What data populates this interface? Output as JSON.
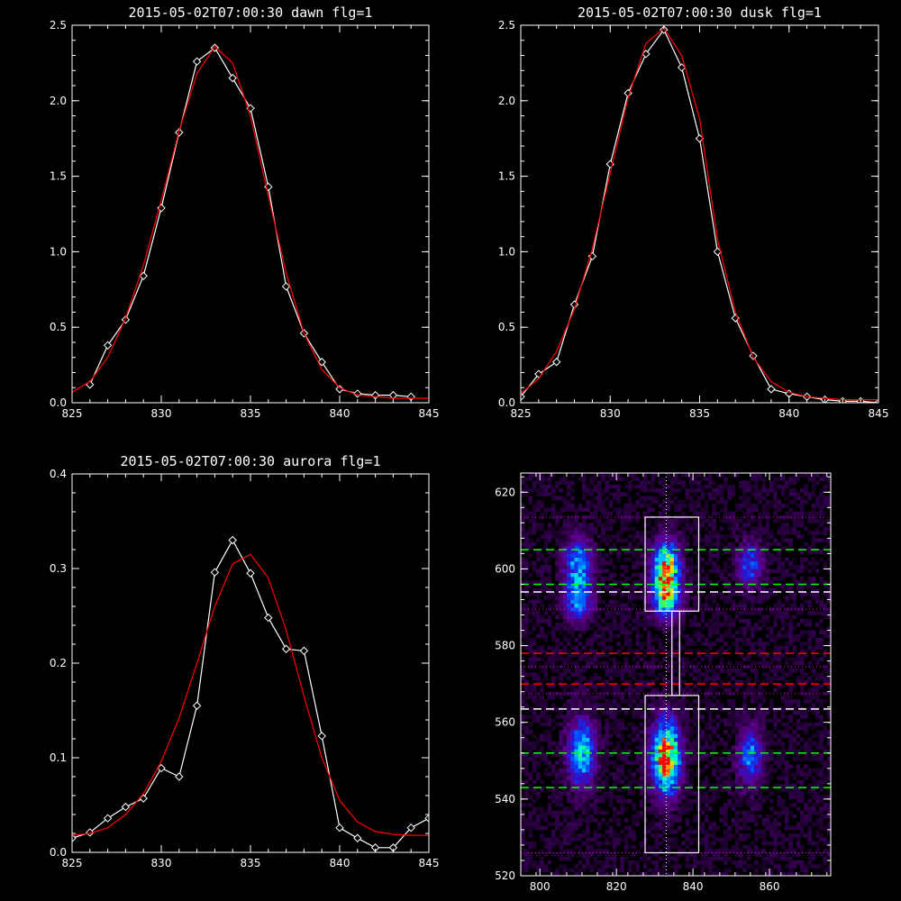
{
  "chart_data": [
    {
      "type": "line",
      "title": "2015-05-02T07:00:30 dawn flg=1",
      "xlim": [
        825,
        845
      ],
      "ylim": [
        0,
        2.5
      ],
      "xticks": [
        825,
        830,
        835,
        840,
        845
      ],
      "xtick_labels": [
        "825",
        "830",
        "835",
        "840",
        "845"
      ],
      "yticks": [
        0,
        0.5,
        1.0,
        1.5,
        2.0,
        2.5
      ],
      "ytick_labels": [
        "0.0",
        "0.5",
        "1.0",
        "1.5",
        "2.0",
        "2.5"
      ],
      "series": [
        {
          "color": "#ffffff",
          "marker": "diamond",
          "x": [
            826,
            827,
            828,
            829,
            830,
            831,
            832,
            833,
            834,
            835,
            836,
            837,
            838,
            839,
            840,
            841,
            842,
            843,
            844
          ],
          "y": [
            0.12,
            0.38,
            0.55,
            0.84,
            1.29,
            1.79,
            2.26,
            2.35,
            2.15,
            1.95,
            1.43,
            0.77,
            0.46,
            0.27,
            0.09,
            0.06,
            0.05,
            0.05,
            0.04
          ]
        },
        {
          "color": "#ff0000",
          "x": [
            825,
            826,
            827,
            828,
            829,
            830,
            831,
            832,
            833,
            834,
            835,
            836,
            837,
            838,
            839,
            840,
            841,
            842,
            843,
            844,
            845
          ],
          "y": [
            0.07,
            0.14,
            0.3,
            0.56,
            0.91,
            1.34,
            1.8,
            2.18,
            2.36,
            2.25,
            1.9,
            1.37,
            0.86,
            0.46,
            0.22,
            0.1,
            0.05,
            0.04,
            0.03,
            0.03,
            0.03
          ]
        }
      ]
    },
    {
      "type": "line",
      "title": "2015-05-02T07:00:30 dusk flg=1",
      "xlim": [
        825,
        845
      ],
      "ylim": [
        0,
        2.5
      ],
      "xticks": [
        825,
        830,
        835,
        840,
        845
      ],
      "xtick_labels": [
        "825",
        "830",
        "835",
        "840",
        "845"
      ],
      "yticks": [
        0,
        0.5,
        1.0,
        1.5,
        2.0,
        2.5
      ],
      "ytick_labels": [
        "0.0",
        "0.5",
        "1.0",
        "1.5",
        "2.0",
        "2.5"
      ],
      "series": [
        {
          "color": "#ffffff",
          "marker": "diamond",
          "x": [
            825,
            826,
            827,
            828,
            829,
            830,
            831,
            832,
            833,
            834,
            835,
            836,
            837,
            838,
            839,
            840,
            841,
            842,
            843,
            844,
            845
          ],
          "y": [
            0.04,
            0.19,
            0.27,
            0.65,
            0.97,
            1.58,
            2.05,
            2.31,
            2.47,
            2.22,
            1.75,
            1.0,
            0.56,
            0.31,
            0.09,
            0.06,
            0.04,
            0.02,
            0.01,
            0.01,
            0.0
          ]
        },
        {
          "color": "#ff0000",
          "x": [
            825,
            826,
            827,
            828,
            829,
            830,
            831,
            832,
            833,
            834,
            835,
            836,
            837,
            838,
            839,
            840,
            841,
            842,
            843,
            844,
            845
          ],
          "y": [
            0.06,
            0.16,
            0.34,
            0.62,
            1.02,
            1.52,
            2.02,
            2.38,
            2.48,
            2.3,
            1.88,
            1.08,
            0.6,
            0.3,
            0.14,
            0.07,
            0.04,
            0.03,
            0.02,
            0.02,
            0.02
          ]
        }
      ]
    },
    {
      "type": "line",
      "title": "2015-05-02T07:00:30 aurora flg=1",
      "xlim": [
        825,
        845
      ],
      "ylim": [
        0,
        0.4
      ],
      "xticks": [
        825,
        830,
        835,
        840,
        845
      ],
      "xtick_labels": [
        "825",
        "830",
        "835",
        "840",
        "845"
      ],
      "yticks": [
        0,
        0.1,
        0.2,
        0.3,
        0.4
      ],
      "ytick_labels": [
        "0.0",
        "0.1",
        "0.2",
        "0.3",
        "0.4"
      ],
      "series": [
        {
          "color": "#ffffff",
          "marker": "diamond",
          "x": [
            825,
            826,
            827,
            828,
            829,
            830,
            831,
            832,
            833,
            834,
            835,
            836,
            837,
            838,
            839,
            840,
            841,
            842,
            843,
            844,
            845
          ],
          "y": [
            0.015,
            0.021,
            0.036,
            0.048,
            0.057,
            0.089,
            0.08,
            0.155,
            0.296,
            0.33,
            0.295,
            0.248,
            0.215,
            0.213,
            0.123,
            0.026,
            0.015,
            0.005,
            0.005,
            0.026,
            0.036
          ]
        },
        {
          "color": "#ff0000",
          "x": [
            825,
            826,
            827,
            828,
            829,
            830,
            831,
            832,
            833,
            834,
            835,
            836,
            837,
            838,
            839,
            840,
            841,
            842,
            843,
            844,
            845
          ],
          "y": [
            0.018,
            0.02,
            0.026,
            0.04,
            0.062,
            0.096,
            0.142,
            0.2,
            0.26,
            0.305,
            0.315,
            0.29,
            0.235,
            0.165,
            0.1,
            0.055,
            0.032,
            0.022,
            0.019,
            0.018,
            0.018
          ]
        }
      ]
    },
    {
      "type": "heatmap",
      "title": "",
      "xlim": [
        795,
        876
      ],
      "ylim": [
        520,
        625
      ],
      "xticks": [
        800,
        820,
        840,
        860
      ],
      "xtick_labels": [
        "800",
        "820",
        "840",
        "860"
      ],
      "yticks": [
        520,
        540,
        560,
        580,
        600,
        620
      ],
      "ytick_labels": [
        "520",
        "540",
        "560",
        "580",
        "600",
        "620"
      ],
      "blobs": [
        {
          "x": 810,
          "y": 600,
          "sx": 2.5,
          "sy": 5.5,
          "amp": 0.55
        },
        {
          "x": 810,
          "y": 591,
          "sx": 2.5,
          "sy": 3.5,
          "amp": 0.35
        },
        {
          "x": 811,
          "y": 552,
          "sx": 2.5,
          "sy": 6,
          "amp": 0.6
        },
        {
          "x": 833,
          "y": 600,
          "sx": 2.5,
          "sy": 5,
          "amp": 0.85
        },
        {
          "x": 833,
          "y": 592,
          "sx": 2.5,
          "sy": 3.5,
          "amp": 0.6
        },
        {
          "x": 833,
          "y": 551,
          "sx": 2.5,
          "sy": 6.5,
          "amp": 1.0
        },
        {
          "x": 855,
          "y": 601,
          "sx": 2.2,
          "sy": 4,
          "amp": 0.4
        },
        {
          "x": 855,
          "y": 551,
          "sx": 2.2,
          "sy": 5.5,
          "amp": 0.45
        }
      ],
      "boxes": [
        {
          "x0": 827.5,
          "x1": 841.5,
          "y0": 589,
          "y1": 613.5
        },
        {
          "x0": 827.5,
          "x1": 841.5,
          "y0": 526,
          "y1": 567
        },
        {
          "x0": 834.5,
          "x1": 836.5,
          "y0": 567,
          "y1": 589
        }
      ],
      "vline_x": 833,
      "hlines": [
        {
          "y": 613.5,
          "color": "#ff00ff",
          "style": "dotted"
        },
        {
          "y": 589.5,
          "color": "#ff00ff",
          "style": "dotted"
        },
        {
          "y": 574.5,
          "color": "#ff00ff",
          "style": "dotted"
        },
        {
          "y": 567.5,
          "color": "#ff00ff",
          "style": "dotted"
        },
        {
          "y": 526,
          "color": "#ff00ff",
          "style": "dotted"
        },
        {
          "y": 605,
          "color": "#00ff00",
          "style": "dashed"
        },
        {
          "y": 596,
          "color": "#00ff00",
          "style": "dashed"
        },
        {
          "y": 552,
          "color": "#00ff00",
          "style": "dashed"
        },
        {
          "y": 543,
          "color": "#00ff00",
          "style": "dashed"
        },
        {
          "y": 594,
          "color": "#ffffff",
          "style": "dashed"
        },
        {
          "y": 563.5,
          "color": "#ffffff",
          "style": "dashed"
        },
        {
          "y": 578,
          "color": "#ff0000",
          "style": "dashed"
        },
        {
          "y": 570,
          "color": "#ff0000",
          "style": "dashed"
        }
      ]
    }
  ]
}
